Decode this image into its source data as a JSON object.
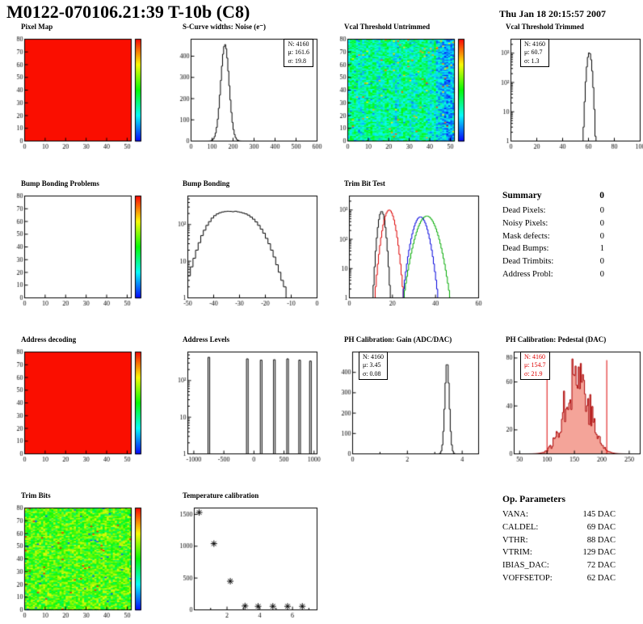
{
  "header": {
    "title": "M0122-070106.21:39 T-10b (C8)",
    "date": "Thu Jan 18 20:15:57 2007"
  },
  "summary": {
    "title": "Summary",
    "value": "0",
    "rows": [
      {
        "label": "Dead Pixels:",
        "value": "0"
      },
      {
        "label": "Noisy Pixels:",
        "value": "0"
      },
      {
        "label": "Mask defects:",
        "value": "0"
      },
      {
        "label": "Dead Bumps:",
        "value": "1"
      },
      {
        "label": "Dead Trimbits:",
        "value": "0"
      },
      {
        "label": "Address Probl:",
        "value": "0"
      }
    ]
  },
  "op_parameters": {
    "title": "Op. Parameters",
    "rows": [
      {
        "label": "VANA:",
        "value": "145 DAC"
      },
      {
        "label": "CALDEL:",
        "value": "69 DAC"
      },
      {
        "label": "VTHR:",
        "value": "88 DAC"
      },
      {
        "label": "VTRIM:",
        "value": "129 DAC"
      },
      {
        "label": "IBIAS_DAC:",
        "value": "72 DAC"
      },
      {
        "label": "VOFFSETOP:",
        "value": "62 DAC"
      }
    ]
  },
  "chart_data": [
    {
      "id": "pixel-map",
      "title": "Pixel Map",
      "type": "heatmap",
      "heat": "solid",
      "fill_color": "#fa0e00",
      "colorbar": true,
      "x": {
        "min": 0,
        "max": 52,
        "ticks": [
          0,
          10,
          20,
          30,
          40,
          50
        ]
      },
      "y": {
        "min": 0,
        "max": 80,
        "ticks": [
          0,
          10,
          20,
          30,
          40,
          50,
          60,
          70,
          80
        ]
      }
    },
    {
      "id": "scurve-noise",
      "title": "S-Curve widths: Noise (e⁻)",
      "type": "hist",
      "x": {
        "min": 0,
        "max": 600,
        "ticks": [
          0,
          100,
          200,
          300,
          400,
          500,
          600
        ]
      },
      "y": {
        "min": 0,
        "max": 480,
        "ticks": [
          0,
          100,
          200,
          300,
          400
        ]
      },
      "series": [
        {
          "mean": 161.6,
          "sigma": 19.8,
          "amp": 455,
          "color": "#000000"
        }
      ],
      "stats": [
        "N: 4160",
        "μ: 161.6",
        "σ: 19.8"
      ]
    },
    {
      "id": "vcal-threshold-untrimmed",
      "title": "Vcal Threshold Untrimmed",
      "type": "heatmap",
      "heat": "noise",
      "noise_profile": "cyan",
      "seed": 12345,
      "colorbar": true,
      "x": {
        "min": 0,
        "max": 52,
        "ticks": [
          0,
          10,
          20,
          30,
          40,
          50
        ]
      },
      "y": {
        "min": 0,
        "max": 80,
        "ticks": [
          0,
          10,
          20,
          30,
          40,
          50,
          60,
          70,
          80
        ]
      }
    },
    {
      "id": "vcal-threshold-trimmed",
      "title": "Vcal Threshold Trimmed",
      "type": "histlog",
      "x": {
        "min": 0,
        "max": 100,
        "ticks": [
          0,
          20,
          40,
          60,
          80,
          100
        ]
      },
      "ylog": {
        "min": 1,
        "max": 3000,
        "decades": [
          1,
          10,
          100,
          1000
        ]
      },
      "series": [
        {
          "mean": 60.7,
          "sigma": 1.3,
          "amp": 1050,
          "color": "#000000"
        }
      ],
      "stats": [
        "N: 4160",
        "μ: 60.7",
        "σ: 1.3"
      ]
    },
    {
      "id": "bump-bonding-problems",
      "title": "Bump Bonding Problems",
      "type": "heatmap",
      "heat": "empty",
      "colorbar": true,
      "x": {
        "min": 0,
        "max": 52,
        "ticks": [
          0,
          10,
          20,
          30,
          40,
          50
        ]
      },
      "y": {
        "min": 0,
        "max": 80,
        "ticks": [
          0,
          10,
          20,
          30,
          40,
          50,
          60,
          70,
          80
        ]
      }
    },
    {
      "id": "bump-bonding",
      "title": "Bump Bonding",
      "type": "histlog",
      "x": {
        "min": -50,
        "max": 0,
        "ticks": [
          -50,
          -40,
          -30,
          -20,
          -10,
          0
        ]
      },
      "ylog": {
        "min": 1,
        "max": 600,
        "decades": [
          1,
          10,
          100
        ]
      },
      "bins": {
        "x0": -50,
        "dx": 1,
        "values": [
          4,
          7,
          12,
          20,
          32,
          50,
          70,
          95,
          120,
          150,
          175,
          195,
          210,
          220,
          226,
          230,
          228,
          224,
          230,
          222,
          215,
          205,
          195,
          180,
          160,
          140,
          118,
          95,
          75,
          58,
          42,
          30,
          20,
          13,
          8,
          5,
          3,
          2,
          0,
          0,
          0,
          0,
          0,
          0,
          0,
          0,
          0,
          0,
          0,
          1
        ]
      }
    },
    {
      "id": "trim-bit-test",
      "title": "Trim Bit Test",
      "type": "histlog",
      "x": {
        "min": 0,
        "max": 60,
        "ticks": [
          0,
          20,
          40,
          60
        ]
      },
      "ylog": {
        "min": 1,
        "max": 3000,
        "decades": [
          1,
          10,
          100,
          1000
        ]
      },
      "series": [
        {
          "mean": 15,
          "sigma": 1.1,
          "amp": 900,
          "color": "#000000"
        },
        {
          "mean": 18.5,
          "sigma": 1.8,
          "amp": 1000,
          "color": "#dd0000"
        },
        {
          "mean": 33,
          "sigma": 2.3,
          "amp": 580,
          "color": "#0000dd"
        },
        {
          "mean": 36,
          "sigma": 3.0,
          "amp": 620,
          "color": "#00aa00"
        }
      ]
    },
    {
      "id": "address-decoding",
      "title": "Address decoding",
      "type": "heatmap",
      "heat": "solid",
      "fill_color": "#fa0e00",
      "colorbar": true,
      "x": {
        "min": 0,
        "max": 52,
        "ticks": [
          0,
          10,
          20,
          30,
          40,
          50
        ]
      },
      "y": {
        "min": 0,
        "max": 80,
        "ticks": [
          0,
          10,
          20,
          30,
          40,
          50,
          60,
          70,
          80
        ]
      }
    },
    {
      "id": "address-levels",
      "title": "Address Levels",
      "type": "histlog",
      "x": {
        "min": -1100,
        "max": 1050,
        "ticks": [
          -1000,
          -500,
          0,
          500,
          1000
        ]
      },
      "ylog": {
        "min": 1,
        "max": 600,
        "decades": [
          1,
          10,
          100
        ]
      },
      "spikes": [
        [
          -750,
          430
        ],
        [
          -110,
          390
        ],
        [
          120,
          360
        ],
        [
          340,
          370
        ],
        [
          560,
          390
        ],
        [
          760,
          360
        ],
        [
          940,
          340
        ]
      ],
      "spike_width": 28
    },
    {
      "id": "ph-calibration-gain",
      "title": "PH Calibration: Gain (ADC/DAC)",
      "type": "hist",
      "x": {
        "min": 0,
        "max": 4.6,
        "ticks": [
          0,
          2,
          4
        ],
        "minor": [
          1,
          3
        ]
      },
      "y": {
        "min": 0,
        "max": 500,
        "ticks": [
          0,
          100,
          200,
          300,
          400
        ]
      },
      "series": [
        {
          "mean": 3.45,
          "sigma": 0.08,
          "amp": 450,
          "color": "#000000"
        }
      ],
      "stats": [
        "N: 4160",
        "μ: 3.45",
        "σ: 0.08"
      ]
    },
    {
      "id": "ph-calibration-pedestal",
      "title": "PH Calibration: Pedestal (DAC)",
      "type": "hist",
      "x": {
        "min": 40,
        "max": 270,
        "ticks": [
          50,
          100,
          150,
          200,
          250
        ]
      },
      "y": {
        "min": 0,
        "max": 85,
        "ticks": [
          0,
          20,
          40,
          60,
          80
        ]
      },
      "series": [
        {
          "mean": 154.7,
          "sigma": 21.9,
          "amp": 68,
          "color": "#aa0000",
          "fill": "rgba(235,90,70,0.55)",
          "noise": 0.4
        }
      ],
      "vlines": [
        {
          "x": 100,
          "color": "#dd0000"
        },
        {
          "x": 209,
          "color": "#dd0000"
        }
      ],
      "stats": [
        "N: 4160",
        "μ: 154.7",
        "σ: 21.9"
      ],
      "stats_color": "#dd0000"
    },
    {
      "id": "trim-bits",
      "title": "Trim Bits",
      "type": "heatmap",
      "heat": "noise",
      "noise_profile": "green",
      "seed": 99,
      "colorbar": true,
      "x": {
        "min": 0,
        "max": 52,
        "ticks": [
          0,
          10,
          20,
          30,
          40,
          50
        ]
      },
      "y": {
        "min": 0,
        "max": 80,
        "ticks": [
          0,
          10,
          20,
          30,
          40,
          50,
          60,
          70,
          80
        ]
      }
    },
    {
      "id": "temperature-calibration",
      "title": "Temperature calibration",
      "type": "scatter",
      "x": {
        "min": 0,
        "max": 7.5,
        "ticks": [
          2,
          4,
          6
        ],
        "minor": [
          1,
          3,
          5,
          7
        ]
      },
      "y": {
        "min": 0,
        "max": 1600,
        "ticks": [
          0,
          500,
          1000,
          1500
        ]
      },
      "points": [
        [
          0.3,
          1530
        ],
        [
          1.2,
          1040
        ],
        [
          2.2,
          450
        ],
        [
          3.1,
          60
        ],
        [
          3.9,
          55
        ],
        [
          4.8,
          55
        ],
        [
          5.7,
          55
        ],
        [
          6.6,
          55
        ]
      ],
      "marker": "asterisk",
      "marker_color": "#000000"
    }
  ]
}
